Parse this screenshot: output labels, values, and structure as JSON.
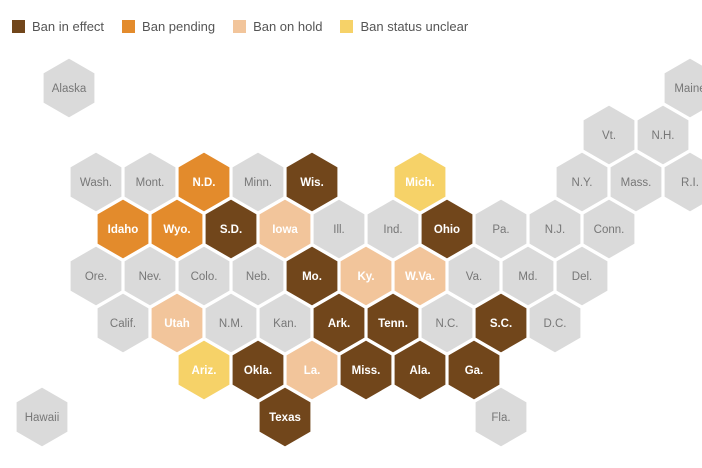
{
  "legend": [
    {
      "key": "effect",
      "label": "Ban in effect",
      "color": "#71461b"
    },
    {
      "key": "pending",
      "label": "Ban pending",
      "color": "#e38b2c"
    },
    {
      "key": "hold",
      "label": "Ban on hold",
      "color": "#f2c59b"
    },
    {
      "key": "unclear",
      "label": "Ban status unclear",
      "color": "#f6d268"
    }
  ],
  "no_status_color": "#dadada",
  "states": [
    {
      "label": "Alaska",
      "row": 0,
      "col": 0,
      "status": null
    },
    {
      "label": "Maine",
      "row": 0,
      "col": 11.5,
      "status": null
    },
    {
      "label": "Vt.",
      "row": 1,
      "col": 10,
      "status": null
    },
    {
      "label": "N.H.",
      "row": 1,
      "col": 11,
      "status": null
    },
    {
      "label": "Wash.",
      "row": 2,
      "col": 0.5,
      "status": null
    },
    {
      "label": "Mont.",
      "row": 2,
      "col": 1.5,
      "status": null
    },
    {
      "label": "N.D.",
      "row": 2,
      "col": 2.5,
      "status": "pending"
    },
    {
      "label": "Minn.",
      "row": 2,
      "col": 3.5,
      "status": null
    },
    {
      "label": "Wis.",
      "row": 2,
      "col": 4.5,
      "status": "effect"
    },
    {
      "label": "Mich.",
      "row": 2,
      "col": 6.5,
      "status": "unclear"
    },
    {
      "label": "N.Y.",
      "row": 2,
      "col": 9.5,
      "status": null
    },
    {
      "label": "Mass.",
      "row": 2,
      "col": 10.5,
      "status": null
    },
    {
      "label": "R.I.",
      "row": 2,
      "col": 11.5,
      "status": null
    },
    {
      "label": "Idaho",
      "row": 3,
      "col": 1,
      "status": "pending"
    },
    {
      "label": "Wyo.",
      "row": 3,
      "col": 2,
      "status": "pending"
    },
    {
      "label": "S.D.",
      "row": 3,
      "col": 3,
      "status": "effect"
    },
    {
      "label": "Iowa",
      "row": 3,
      "col": 4,
      "status": "hold"
    },
    {
      "label": "Ill.",
      "row": 3,
      "col": 5,
      "status": null
    },
    {
      "label": "Ind.",
      "row": 3,
      "col": 6,
      "status": null
    },
    {
      "label": "Ohio",
      "row": 3,
      "col": 7,
      "status": "effect"
    },
    {
      "label": "Pa.",
      "row": 3,
      "col": 8,
      "status": null
    },
    {
      "label": "N.J.",
      "row": 3,
      "col": 9,
      "status": null
    },
    {
      "label": "Conn.",
      "row": 3,
      "col": 10,
      "status": null
    },
    {
      "label": "Ore.",
      "row": 4,
      "col": 0.5,
      "status": null
    },
    {
      "label": "Nev.",
      "row": 4,
      "col": 1.5,
      "status": null
    },
    {
      "label": "Colo.",
      "row": 4,
      "col": 2.5,
      "status": null
    },
    {
      "label": "Neb.",
      "row": 4,
      "col": 3.5,
      "status": null
    },
    {
      "label": "Mo.",
      "row": 4,
      "col": 4.5,
      "status": "effect"
    },
    {
      "label": "Ky.",
      "row": 4,
      "col": 5.5,
      "status": "hold"
    },
    {
      "label": "W.Va.",
      "row": 4,
      "col": 6.5,
      "status": "hold"
    },
    {
      "label": "Va.",
      "row": 4,
      "col": 7.5,
      "status": null
    },
    {
      "label": "Md.",
      "row": 4,
      "col": 8.5,
      "status": null
    },
    {
      "label": "Del.",
      "row": 4,
      "col": 9.5,
      "status": null
    },
    {
      "label": "Calif.",
      "row": 5,
      "col": 1,
      "status": null
    },
    {
      "label": "Utah",
      "row": 5,
      "col": 2,
      "status": "hold"
    },
    {
      "label": "N.M.",
      "row": 5,
      "col": 3,
      "status": null
    },
    {
      "label": "Kan.",
      "row": 5,
      "col": 4,
      "status": null
    },
    {
      "label": "Ark.",
      "row": 5,
      "col": 5,
      "status": "effect"
    },
    {
      "label": "Tenn.",
      "row": 5,
      "col": 6,
      "status": "effect"
    },
    {
      "label": "N.C.",
      "row": 5,
      "col": 7,
      "status": null
    },
    {
      "label": "S.C.",
      "row": 5,
      "col": 8,
      "status": "effect"
    },
    {
      "label": "D.C.",
      "row": 5,
      "col": 9,
      "status": null
    },
    {
      "label": "Ariz.",
      "row": 6,
      "col": 2.5,
      "status": "unclear"
    },
    {
      "label": "Okla.",
      "row": 6,
      "col": 3.5,
      "status": "effect"
    },
    {
      "label": "La.",
      "row": 6,
      "col": 4.5,
      "status": "hold"
    },
    {
      "label": "Miss.",
      "row": 6,
      "col": 5.5,
      "status": "effect"
    },
    {
      "label": "Ala.",
      "row": 6,
      "col": 6.5,
      "status": "effect"
    },
    {
      "label": "Ga.",
      "row": 6,
      "col": 7.5,
      "status": "effect"
    },
    {
      "label": "Hawaii",
      "row": 7,
      "col": -0.5,
      "status": null
    },
    {
      "label": "Texas",
      "row": 7,
      "col": 4,
      "status": "effect"
    },
    {
      "label": "Fla.",
      "row": 7,
      "col": 8,
      "status": null
    }
  ]
}
